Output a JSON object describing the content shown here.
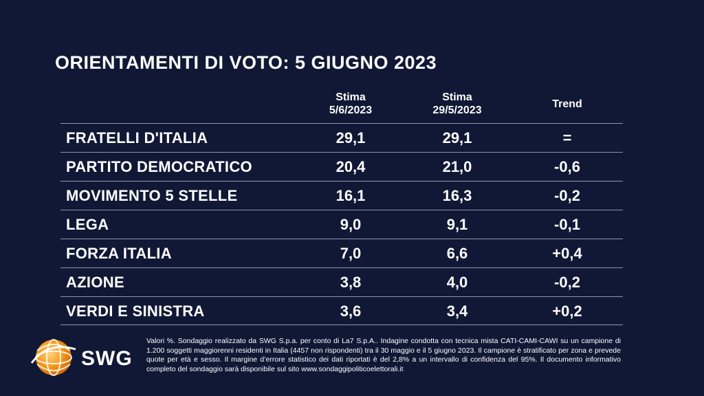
{
  "title": "ORIENTAMENTI DI VOTO: 5 GIUGNO 2023",
  "chart_data": {
    "type": "table",
    "title": "ORIENTAMENTI DI VOTO: 5 GIUGNO 2023",
    "columns": [
      {
        "line1": "Stima",
        "line2": "5/6/2023"
      },
      {
        "line1": "Stima",
        "line2": "29/5/2023"
      },
      {
        "line1": "Trend",
        "line2": ""
      }
    ],
    "rows": [
      {
        "party": "FRATELLI D'ITALIA",
        "current": "29,1",
        "previous": "29,1",
        "trend": "="
      },
      {
        "party": "PARTITO DEMOCRATICO",
        "current": "20,4",
        "previous": "21,0",
        "trend": "-0,6"
      },
      {
        "party": "MOVIMENTO 5 STELLE",
        "current": "16,1",
        "previous": "16,3",
        "trend": "-0,2"
      },
      {
        "party": "LEGA",
        "current": "9,0",
        "previous": "9,1",
        "trend": "-0,1"
      },
      {
        "party": "FORZA ITALIA",
        "current": "7,0",
        "previous": "6,6",
        "trend": "+0,4"
      },
      {
        "party": "AZIONE",
        "current": "3,8",
        "previous": "4,0",
        "trend": "-0,2"
      },
      {
        "party": "VERDI E SINISTRA",
        "current": "3,6",
        "previous": "3,4",
        "trend": "+0,2"
      }
    ]
  },
  "logo": {
    "text": "SWG",
    "accent": "#f39a1e"
  },
  "footnote": "Valori %. Sondaggio realizzato da SWG S.p.a. per conto di La7 S.p.A.. Indagine condotta con tecnica mista CATI-CAMI-CAWI su un campione di 1.200 soggetti maggiorenni residenti in Italia (4457 non rispondenti) tra il 30 maggio e il 5 giugno 2023. Il campione è stratificato per zona e prevede quote per età e sesso. Il margine d’errore statistico dei dati riportati è del 2,8% a un intervallo di confidenza del 95%. Il documento informativo completo del sondaggio sarà disponibile sul sito www.sondaggipoliticoelettorali.it",
  "colors": {
    "background": "#101835",
    "text": "#ffffff",
    "rule": "#8f95ad"
  }
}
